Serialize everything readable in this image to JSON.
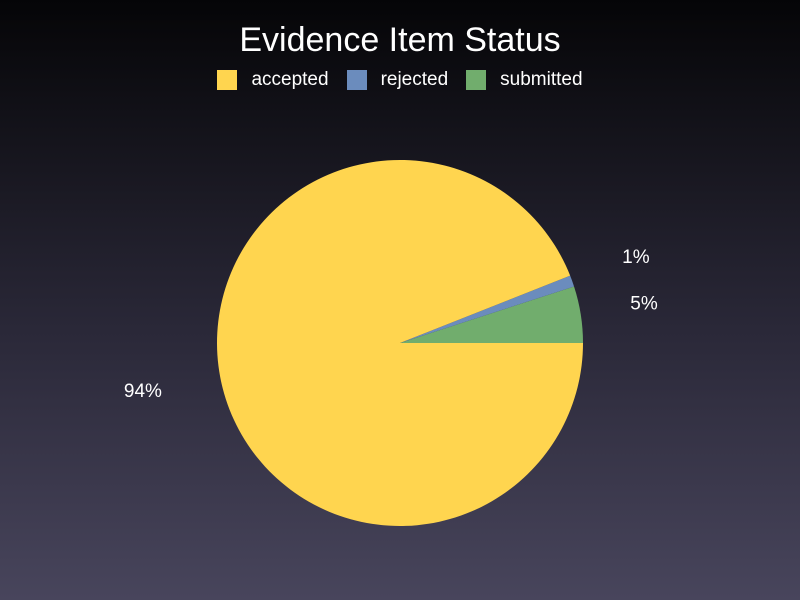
{
  "chart_data": {
    "type": "pie",
    "title": "Evidence Item Status",
    "legend_position": "top-center",
    "categories": [
      "accepted",
      "rejected",
      "submitted"
    ],
    "values": [
      94,
      1,
      5
    ],
    "labels": [
      "94%",
      "1%",
      "5%"
    ],
    "colors": [
      "#ffd54f",
      "#6b8cbd",
      "#71ad6d"
    ]
  }
}
